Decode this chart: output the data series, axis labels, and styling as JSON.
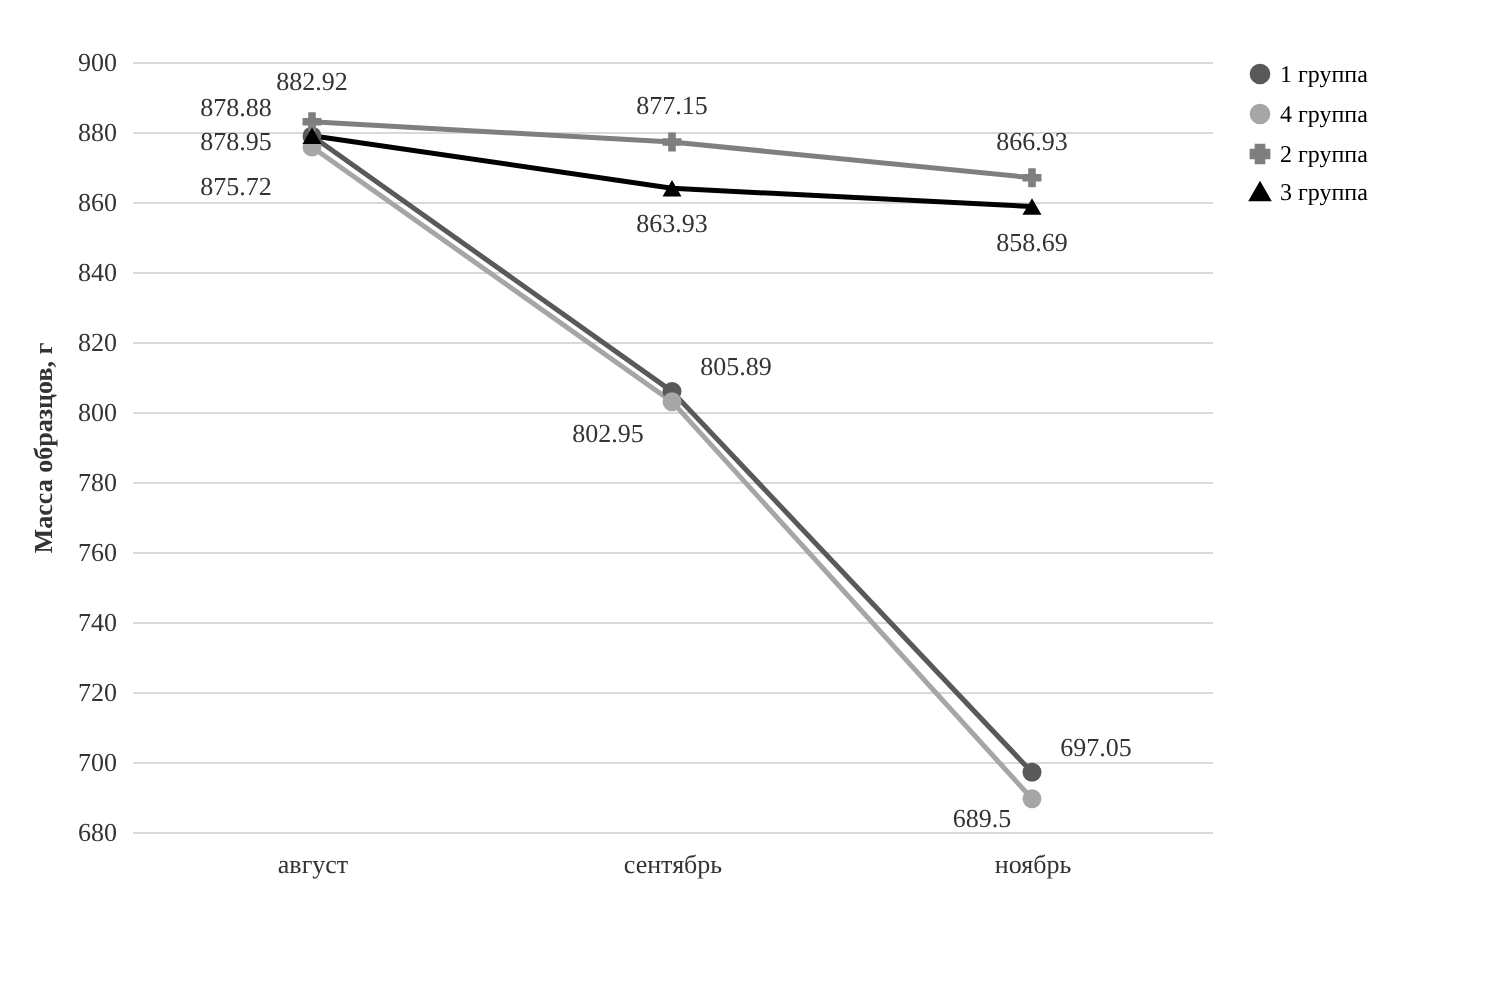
{
  "chart_data": {
    "type": "line",
    "ylabel": "Масса образцов, г",
    "categories": [
      "август",
      "сентябрь",
      "ноябрь"
    ],
    "series": [
      {
        "name": "1 группа",
        "color": "#595959",
        "marker": "circle",
        "values": [
          878.88,
          805.89,
          697.05
        ]
      },
      {
        "name": "4 группа",
        "color": "#a6a6a6",
        "marker": "circle",
        "values": [
          875.72,
          802.95,
          689.5
        ]
      },
      {
        "name": "2 группа",
        "color": "#7f7f7f",
        "marker": "cross",
        "values": [
          882.92,
          877.15,
          866.93
        ]
      },
      {
        "name": "3 группа",
        "color": "#000000",
        "marker": "triangle",
        "values": [
          878.95,
          863.93,
          858.69
        ]
      }
    ],
    "ylim": [
      680,
      900
    ],
    "yticks": [
      680,
      700,
      720,
      740,
      760,
      780,
      800,
      820,
      840,
      860,
      880,
      900
    ],
    "grid": "y",
    "legend": "right",
    "data_labels": true
  }
}
